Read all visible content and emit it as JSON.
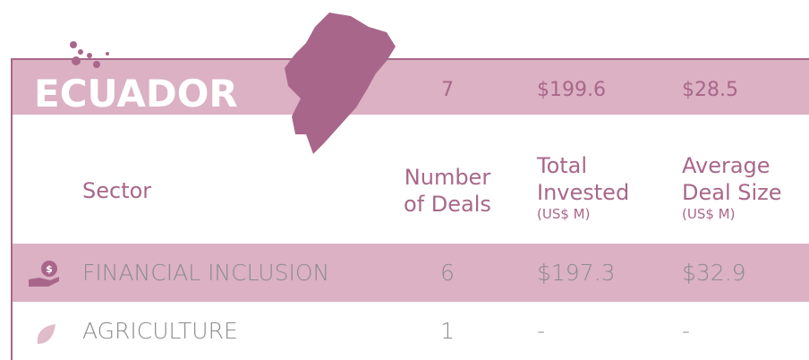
{
  "country": "ECUADOR",
  "summary": {
    "deals": "7",
    "total": "$199.6",
    "average": "$28.5"
  },
  "header": {
    "sector": "Sector",
    "deals": [
      "Number",
      "of Deals"
    ],
    "total": [
      "Total",
      "Invested"
    ],
    "total_unit": "(US$ M)",
    "average": [
      "Average",
      "Deal Size"
    ],
    "average_unit": "(US$ M)"
  },
  "rows": [
    [
      "FINANCIAL INCLUSION",
      "6",
      "$197.3",
      "$32.9"
    ],
    [
      "AGRICULTURE",
      "1",
      "-",
      "-"
    ]
  ]
}
